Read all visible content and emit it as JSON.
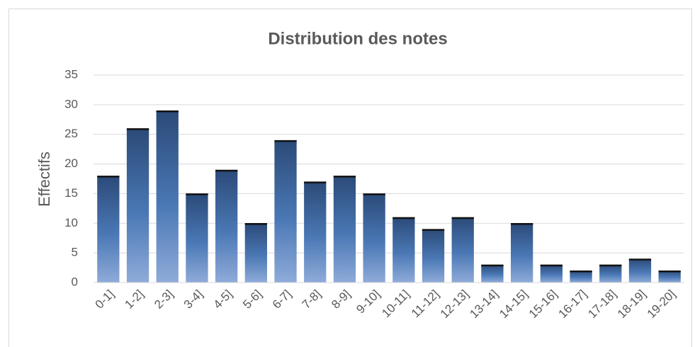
{
  "chart_data": {
    "type": "bar",
    "title": "Distribution des notes",
    "y_label": "Effectifs",
    "categories": [
      "0-1]",
      "1-2]",
      "2-3]",
      "3-4]",
      "4-5]",
      "5-6]",
      "6-7]",
      "7-8]",
      "8-9]",
      "9-10]",
      "10-11]",
      "11-12]",
      "12-13]",
      "13-14]",
      "14-15]",
      "15-16]",
      "16-17]",
      "17-18]",
      "18-19]",
      "19-20]"
    ],
    "values": [
      18,
      26,
      29,
      15,
      19,
      10,
      24,
      17,
      18,
      15,
      11,
      9,
      11,
      3,
      10,
      3,
      2,
      3,
      4,
      2
    ],
    "color": "#3e6aa8",
    "ylim": [
      0,
      35
    ],
    "yticks": [
      0,
      5,
      10,
      15,
      20,
      25,
      30,
      35
    ],
    "grid": true
  }
}
